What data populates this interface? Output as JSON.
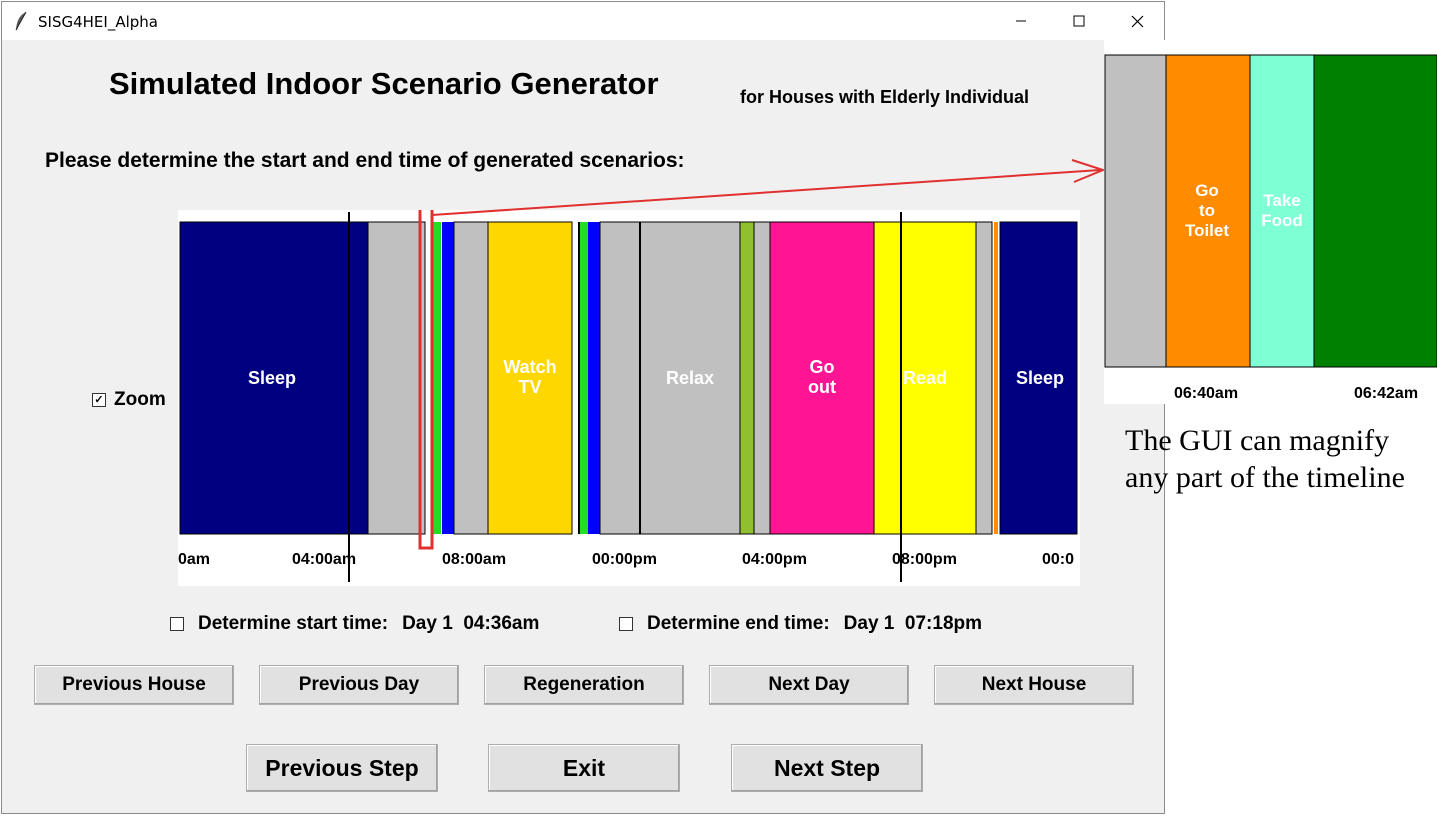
{
  "window": {
    "title": "SISG4HEI_Alpha",
    "controls": [
      "minimize-icon",
      "maximize-icon",
      "close-icon"
    ]
  },
  "header": {
    "title": "Simulated Indoor Scenario Generator",
    "subtitle": "for Houses with Elderly Individual"
  },
  "prompt": "Please determine the start and end time of generated scenarios:",
  "zoom": {
    "label": "Zoom",
    "checked": true
  },
  "timeline": {
    "tick_labels": [
      "0am",
      "04:00am",
      "08:00am",
      "00:00pm",
      "04:00pm",
      "08:00pm",
      "00:0"
    ],
    "segment_labels": [
      "Sleep",
      "Watch\nTV",
      "Relax",
      "Go\nout",
      "Read",
      "Sleep"
    ],
    "colors": {
      "sleep": "#000080",
      "idle": "#c0c0c0",
      "watch_tv": "#ffd700",
      "go_out": "#ff1493",
      "read": "#ffff00",
      "green": "#22dd22",
      "blue": "#0000ff",
      "yellowgreen": "#90c030",
      "highlight": "#e03030"
    }
  },
  "start": {
    "label": "Determine start time:",
    "value": "Day 1  04:36am",
    "checked": false
  },
  "end": {
    "label": "Determine end time:",
    "value": "Day 1  07:18pm",
    "checked": false
  },
  "buttons_row1": [
    "Previous House",
    "Previous Day",
    "Regeneration",
    "Next Day",
    "Next House"
  ],
  "buttons_row2": [
    "Previous Step",
    "Exit",
    "Next Step"
  ],
  "zoom_panel": {
    "segment_labels": [
      "Go\nto\nToilet",
      "Take\nFood"
    ],
    "tick_labels": [
      "06:40am",
      "06:42am"
    ],
    "colors": {
      "idle": "#c0c0c0",
      "toilet": "#ff8c00",
      "food": "#7fffd4",
      "other": "#008000"
    }
  },
  "caption": [
    "The GUI can magnify",
    "any part of the timeline"
  ]
}
